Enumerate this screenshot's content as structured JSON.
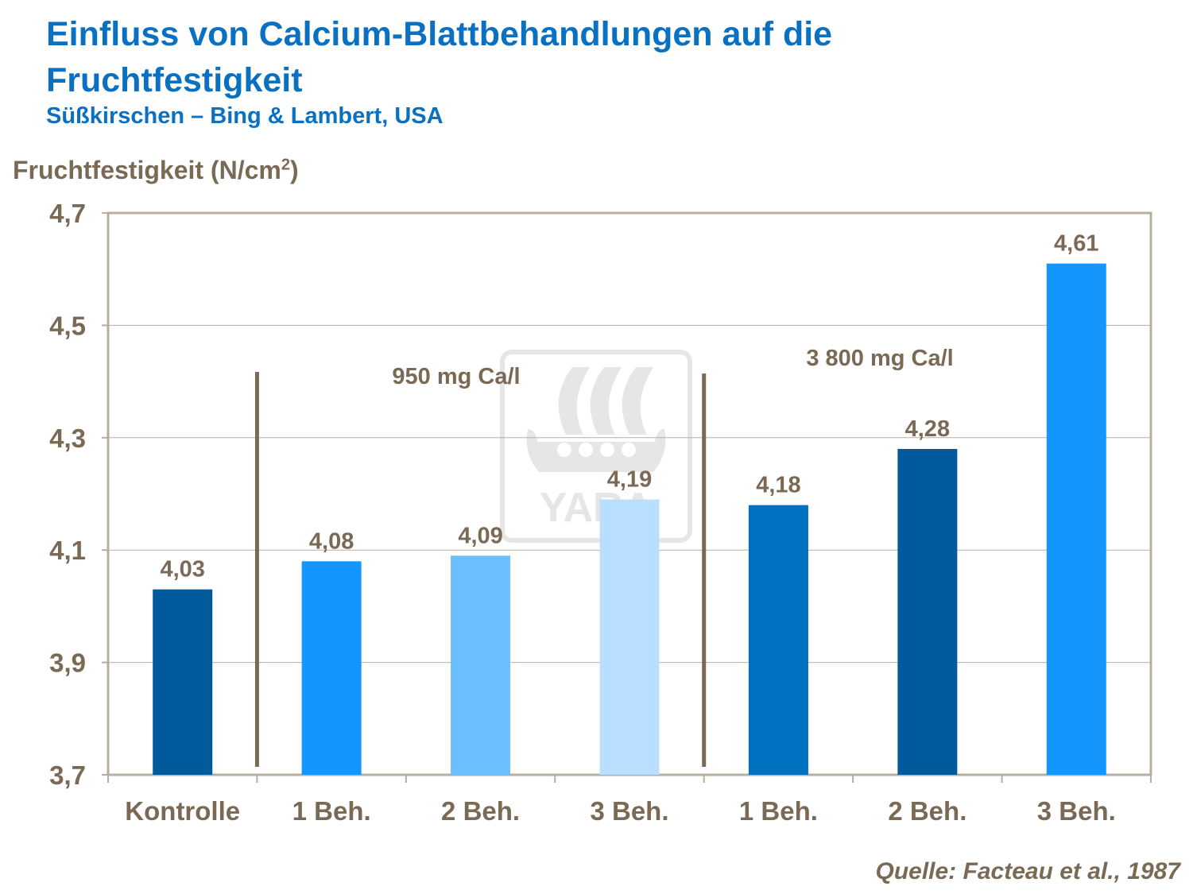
{
  "title": "Einfluss von Calcium-Blattbehandlungen auf die Fruchtfestigkeit",
  "subtitle": "Süßkirschen – Bing & Lambert, USA",
  "source": "Quelle: Facteau et al., 1987",
  "watermark": "YARA",
  "chart_data": {
    "type": "bar",
    "title": "Einfluss von Calcium-Blattbehandlungen auf die Fruchtfestigkeit",
    "ylabel": "Fruchtfestigkeit (N/cm",
    "ylabel_sup": "2",
    "ylabel_end": ")",
    "ylim": [
      3.7,
      4.7
    ],
    "yticks": [
      3.7,
      3.9,
      4.1,
      4.3,
      4.5,
      4.7
    ],
    "ytick_labels": [
      "3,7",
      "3,9",
      "4,1",
      "4,3",
      "4,5",
      "4,7"
    ],
    "grid": true,
    "categories": [
      "Kontrolle",
      "1 Beh.",
      "2 Beh.",
      "3 Beh.",
      "1 Beh.",
      "2 Beh.",
      "3 Beh."
    ],
    "values": [
      4.03,
      4.08,
      4.09,
      4.19,
      4.18,
      4.28,
      4.61
    ],
    "value_labels": [
      "4,03",
      "4,08",
      "4,09",
      "4,19",
      "4,18",
      "4,28",
      "4,61"
    ],
    "colors": [
      "#005a9c",
      "#1496ff",
      "#6bbfff",
      "#b8dfff",
      "#0070c0",
      "#005a9c",
      "#1496ff"
    ],
    "group_labels": [
      "950 mg Ca/l",
      "3 800 mg Ca/l"
    ]
  }
}
